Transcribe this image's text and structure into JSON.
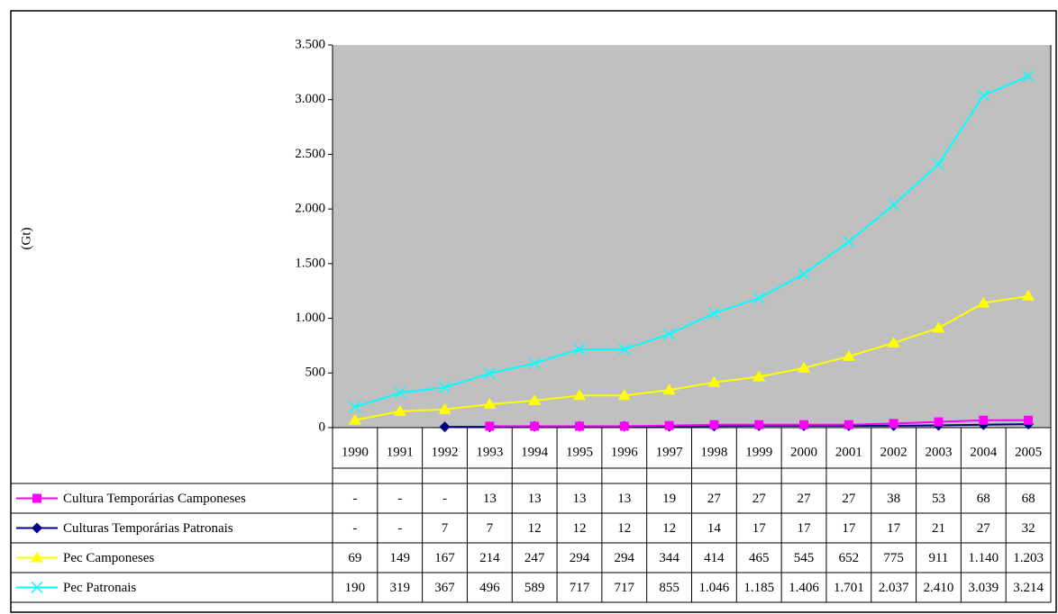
{
  "chart_data": {
    "type": "line",
    "y_label": "(Gt)",
    "categories": [
      "1990",
      "1991",
      "1992",
      "1993",
      "1994",
      "1995",
      "1996",
      "1997",
      "1998",
      "1999",
      "2000",
      "2001",
      "2002",
      "2003",
      "2004",
      "2005"
    ],
    "ylim": [
      0,
      3500
    ],
    "yticks": [
      0,
      500,
      {
        "value": 1000,
        "label": "1.000"
      },
      {
        "value": 1500,
        "label": "1.500"
      },
      {
        "value": 2000,
        "label": "2.000"
      },
      {
        "value": 2500,
        "label": "2.500"
      },
      {
        "value": 3000,
        "label": "3.000"
      },
      {
        "value": 3500,
        "label": "3.500"
      }
    ],
    "plot_background": "#c0c0c0",
    "series": [
      {
        "name": "Cultura Temporárias Camponeses",
        "color": "#ff00ff",
        "marker": "square",
        "values": [
          null,
          null,
          null,
          13,
          13,
          13,
          13,
          19,
          27,
          27,
          27,
          27,
          38,
          53,
          68,
          68
        ],
        "value_labels": [
          "-",
          "-",
          "-",
          "13",
          "13",
          "13",
          "13",
          "19",
          "27",
          "27",
          "27",
          "27",
          "38",
          "53",
          "68",
          "68"
        ]
      },
      {
        "name": "Culturas Temporárias Patronais",
        "color": "#000080",
        "marker": "diamond",
        "values": [
          null,
          null,
          7,
          7,
          12,
          12,
          12,
          12,
          14,
          17,
          17,
          17,
          17,
          21,
          27,
          32
        ],
        "value_labels": [
          "-",
          "-",
          "7",
          "7",
          "12",
          "12",
          "12",
          "12",
          "14",
          "17",
          "17",
          "17",
          "17",
          "21",
          "27",
          "32"
        ]
      },
      {
        "name": "Pec Camponeses",
        "color": "#ffff00",
        "marker": "triangle",
        "values": [
          69,
          149,
          167,
          214,
          247,
          294,
          294,
          344,
          414,
          465,
          545,
          652,
          775,
          911,
          1140,
          1203
        ],
        "value_labels": [
          "69",
          "149",
          "167",
          "214",
          "247",
          "294",
          "294",
          "344",
          "414",
          "465",
          "545",
          "652",
          "775",
          "911",
          "1.140",
          "1.203"
        ]
      },
      {
        "name": "Pec Patronais",
        "color": "#00ffff",
        "marker": "x",
        "values": [
          190,
          319,
          367,
          496,
          589,
          717,
          717,
          855,
          1046,
          1185,
          1406,
          1701,
          2037,
          2410,
          3039,
          3214
        ],
        "value_labels": [
          "190",
          "319",
          "367",
          "496",
          "589",
          "717",
          "717",
          "855",
          "1.046",
          "1.185",
          "1.406",
          "1.701",
          "2.037",
          "2.410",
          "3.039",
          "3.214"
        ]
      }
    ]
  }
}
